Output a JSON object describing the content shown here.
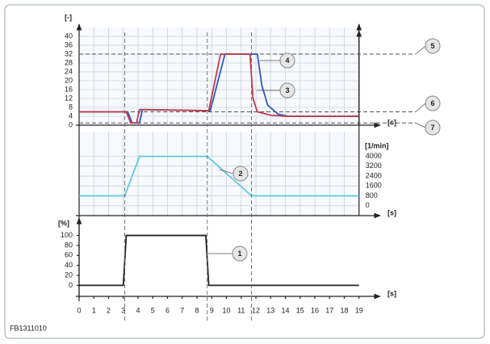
{
  "footer": "FB1311010",
  "vlines": [
    3.1,
    8.7,
    11.7
  ],
  "chart_data": [
    {
      "type": "line",
      "ylabel": "[-]",
      "xlabel": "[s]",
      "grid": true,
      "xlim": [
        0,
        20
      ],
      "xticks": [
        0,
        1,
        2,
        3,
        4,
        5,
        6,
        7,
        8,
        9,
        10,
        11,
        12,
        13,
        14,
        15,
        16,
        17,
        18,
        19
      ],
      "ylim": [
        0,
        44
      ],
      "yticks": [
        0,
        4,
        8,
        12,
        16,
        20,
        24,
        28,
        32,
        36,
        40
      ],
      "hlines": [
        {
          "value": 32,
          "label": "5"
        },
        {
          "value": 6,
          "label": "6"
        },
        {
          "value": 1,
          "label": "7"
        }
      ],
      "series": [
        {
          "name": "4",
          "color": "#2f56c8",
          "x": [
            0,
            3.3,
            3.6,
            4.1,
            4.3,
            4.6,
            8.9,
            9.9,
            12.1,
            12.4,
            12.8,
            13.5,
            14.2,
            19
          ],
          "values": [
            6,
            6,
            1,
            1,
            7,
            7,
            6.5,
            32,
            32,
            18,
            9,
            5,
            4,
            4
          ]
        },
        {
          "name": "3",
          "color": "#c0394b",
          "x": [
            0,
            3.2,
            3.5,
            3.9,
            4.1,
            4.6,
            8.8,
            9.6,
            11.6,
            11.8,
            12.1,
            13,
            14,
            19
          ],
          "values": [
            6,
            6,
            1,
            1,
            7,
            7,
            6.5,
            32,
            32,
            12,
            6,
            4.5,
            4,
            4
          ]
        }
      ]
    },
    {
      "type": "line",
      "ylabel": "[1/min]",
      "xlabel": "[s]",
      "grid": true,
      "xlim": [
        0,
        20
      ],
      "xticks": [
        0,
        1,
        2,
        3,
        4,
        5,
        6,
        7,
        8,
        9,
        10,
        11,
        12,
        13,
        14,
        15,
        16,
        17,
        18,
        19
      ],
      "ylim": [
        -800,
        6000
      ],
      "yticks": [
        0,
        800,
        1600,
        2400,
        3200,
        4000
      ],
      "series": [
        {
          "name": "2",
          "color": "#5ccbe0",
          "x": [
            0,
            3.1,
            4.1,
            8.7,
            11.7,
            19
          ],
          "values": [
            800,
            800,
            4000,
            4000,
            800,
            800
          ]
        }
      ]
    },
    {
      "type": "line",
      "ylabel": "[%]",
      "xlabel": "[s]",
      "grid": false,
      "xlim": [
        0,
        20
      ],
      "xticks": [
        0,
        1,
        2,
        3,
        4,
        5,
        6,
        7,
        8,
        9,
        10,
        11,
        12,
        13,
        14,
        15,
        16,
        17,
        18,
        19
      ],
      "ylim": [
        -22,
        130
      ],
      "yticks": [
        0,
        20,
        40,
        60,
        80,
        100
      ],
      "series": [
        {
          "name": "1",
          "color": "#222222",
          "x": [
            0,
            3.0,
            3.2,
            8.6,
            8.8,
            19
          ],
          "values": [
            0,
            0,
            100,
            100,
            0,
            0
          ]
        }
      ]
    }
  ]
}
